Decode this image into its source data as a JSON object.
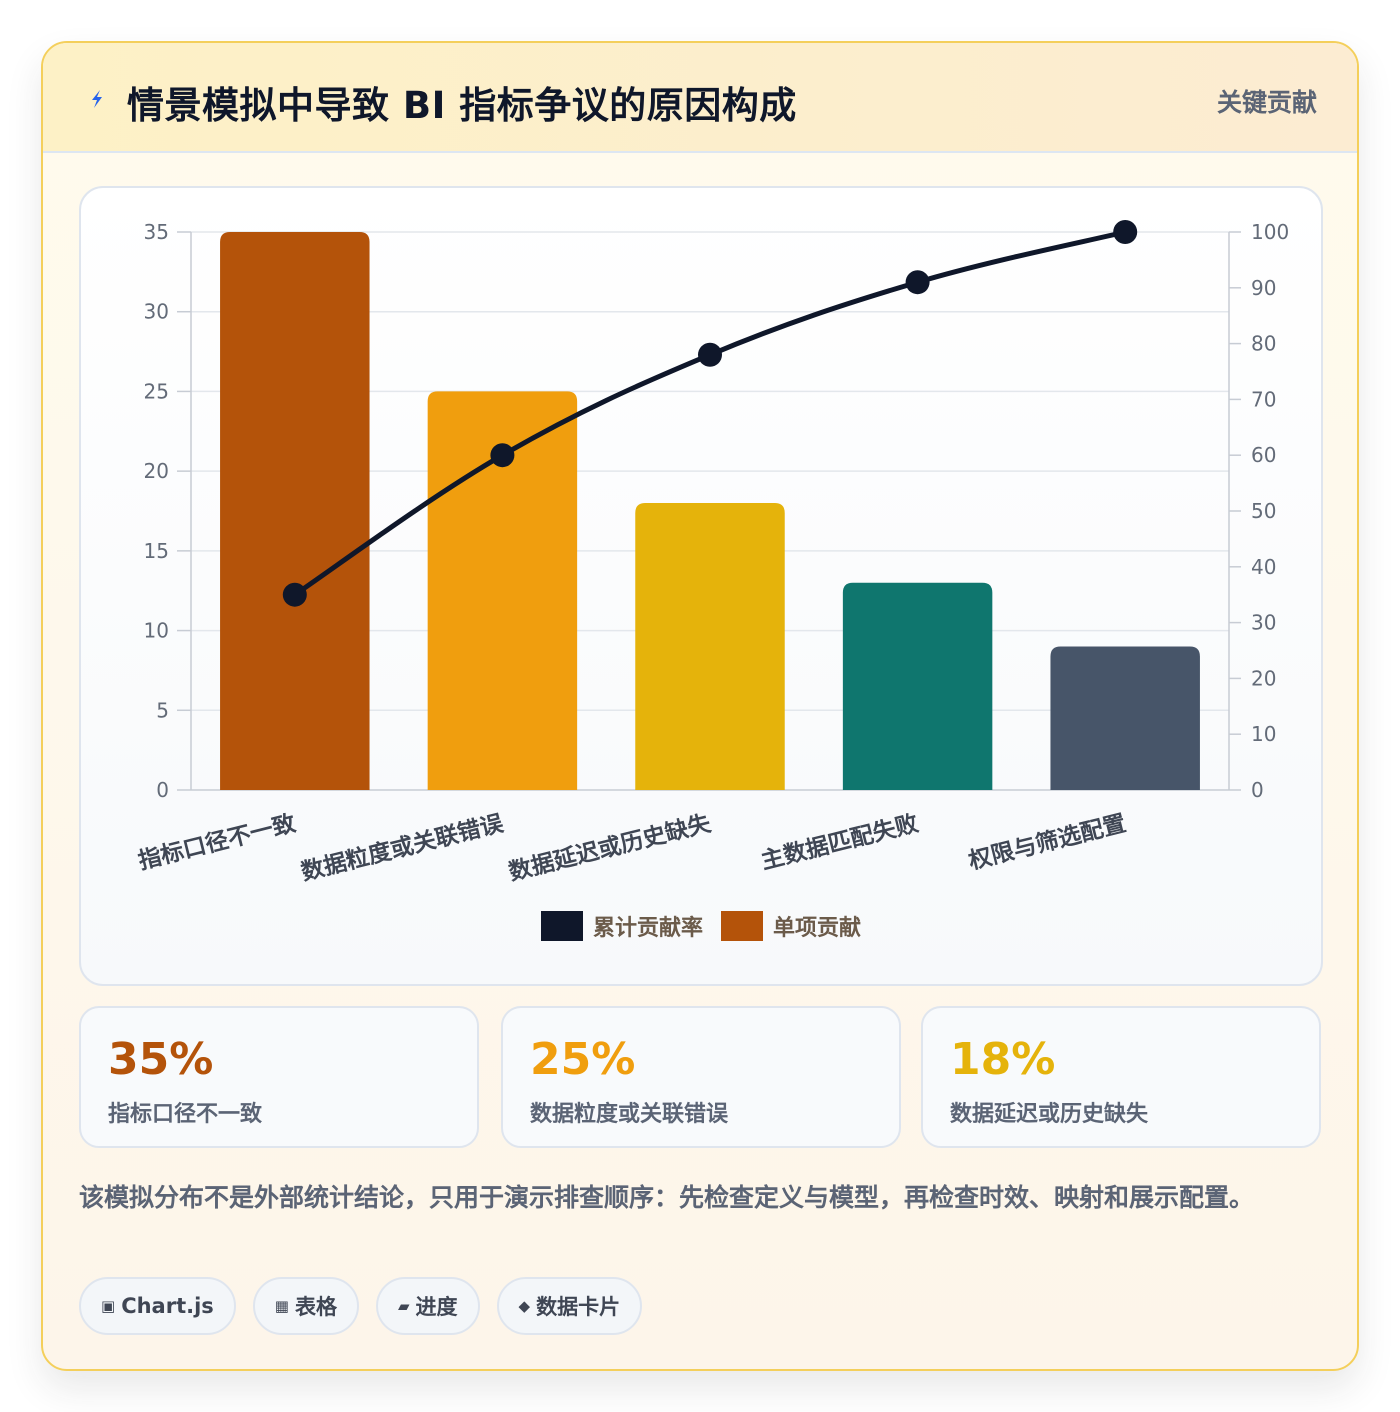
{
  "header": {
    "icon": "lightning-bolt-icon",
    "title": "情景模拟中导致 BI 指标争议的原因构成",
    "tag": "关键贡献"
  },
  "chart_data": {
    "type": "bar",
    "categories": [
      "指标口径不一致",
      "数据粒度或关联错误",
      "数据延迟或历史缺失",
      "主数据匹配失败",
      "权限与筛选配置"
    ],
    "series": [
      {
        "name": "单项贡献",
        "type": "bar",
        "axis": "left",
        "values": [
          35,
          25,
          18,
          13,
          9
        ],
        "colors": [
          "#b4530a",
          "#f09e0e",
          "#e5b30b",
          "#0f766e",
          "#475569"
        ]
      },
      {
        "name": "累计贡献率",
        "type": "line",
        "axis": "right",
        "values": [
          35,
          60,
          78,
          91,
          100
        ],
        "color": "#0f172a"
      }
    ],
    "y_left": {
      "range": [
        0,
        35
      ],
      "ticks": [
        0,
        5,
        10,
        15,
        20,
        25,
        30,
        35
      ]
    },
    "y_right": {
      "range": [
        0,
        100
      ],
      "ticks": [
        0,
        10,
        20,
        30,
        40,
        50,
        60,
        70,
        80,
        90,
        100
      ]
    },
    "grid": true,
    "legend_position": "bottom",
    "legend": [
      {
        "label": "累计贡献率",
        "color": "#0f172a"
      },
      {
        "label": "单项贡献",
        "color": "#b4530a"
      }
    ]
  },
  "stats": [
    {
      "value": "35%",
      "label": "指标口径不一致",
      "color": "#b4530a"
    },
    {
      "value": "25%",
      "label": "数据粒度或关联错误",
      "color": "#f09e0e"
    },
    {
      "value": "18%",
      "label": "数据延迟或历史缺失",
      "color": "#e5b30b"
    }
  ],
  "note": "该模拟分布不是外部统计结论，只用于演示排查顺序：先检查定义与模型，再检查时效、映射和展示配置。",
  "chips": [
    {
      "icon": "▣",
      "icon_name": "square-icon",
      "label": "Chart.js"
    },
    {
      "icon": "▦",
      "icon_name": "table-icon",
      "label": "表格"
    },
    {
      "icon": "▰",
      "icon_name": "progress-icon",
      "label": "进度"
    },
    {
      "icon": "◆",
      "icon_name": "diamond-icon",
      "label": "数据卡片"
    }
  ]
}
